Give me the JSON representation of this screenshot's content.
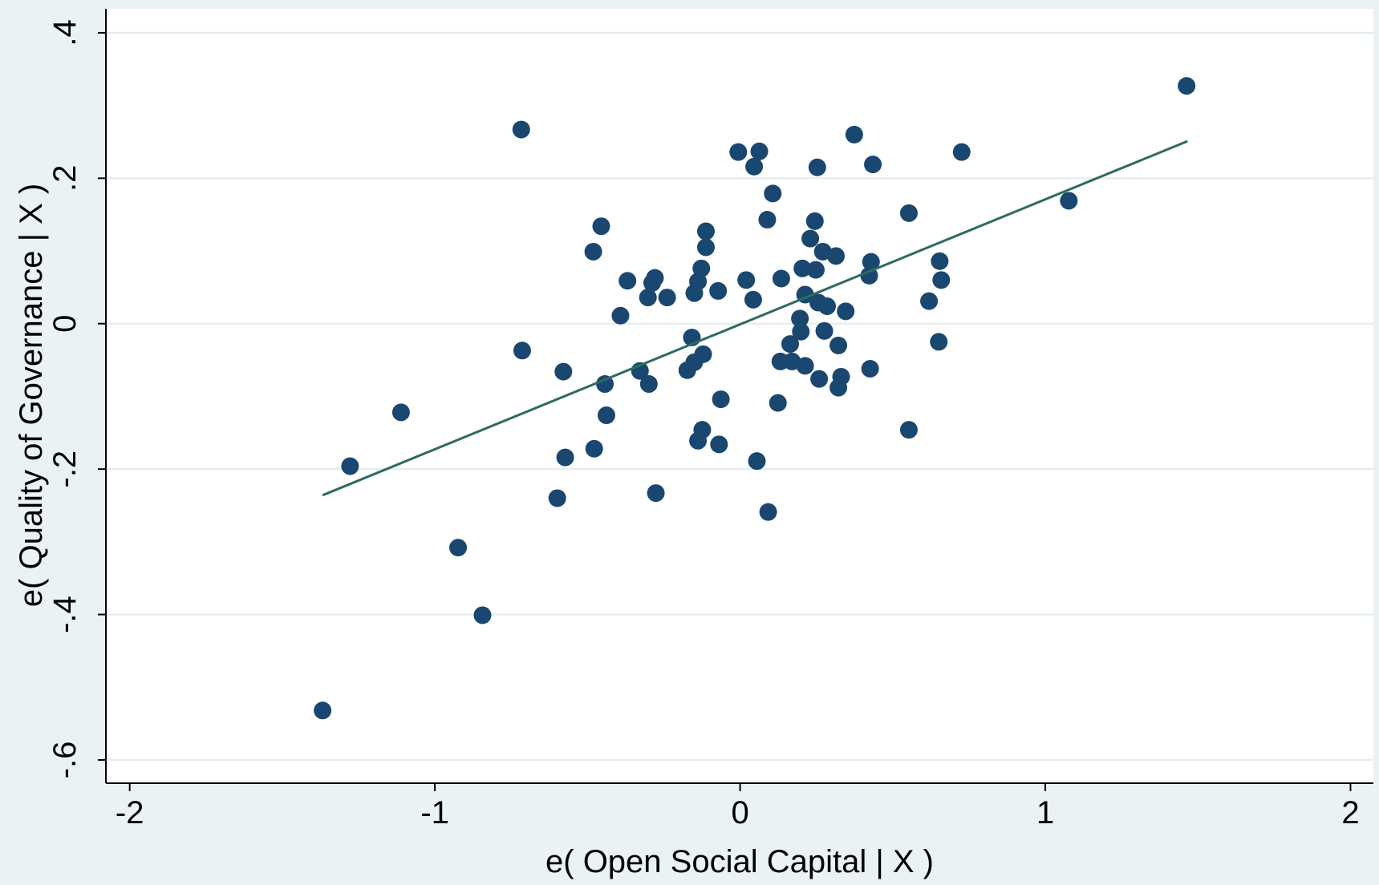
{
  "chart_data": {
    "type": "scatter",
    "x_label": "e( Open Social Capital | X )",
    "y_label": "e( Quality of Governance | X )",
    "xlim": [
      -2.078,
      2.075
    ],
    "ylim": [
      -0.632,
      0.433
    ],
    "xticks": [
      -2,
      -1,
      0,
      1,
      2
    ],
    "yticks": [
      {
        "value": -0.6,
        "label": "-.6"
      },
      {
        "value": -0.4,
        "label": "-.4"
      },
      {
        "value": -0.2,
        "label": "-.2"
      },
      0,
      {
        "value": 0.2,
        "label": ".2"
      },
      {
        "value": 0.4,
        "label": ".4"
      }
    ],
    "grid": true,
    "series": [
      {
        "color": "#1a476f",
        "x": [
          1.463,
          -0.717,
          0.374,
          -0.006,
          0.063,
          0.726,
          0.046,
          0.253,
          0.435,
          0.107,
          1.077,
          0.553,
          -0.455,
          0.089,
          0.245,
          -0.112,
          0.23,
          -0.112,
          -0.481,
          0.271,
          0.314,
          0.429,
          0.654,
          -0.127,
          0.204,
          0.248,
          0.423,
          -0.369,
          -0.279,
          -0.288,
          -0.138,
          0.02,
          0.135,
          0.659,
          -0.072,
          -0.15,
          -0.302,
          -0.239,
          0.043,
          0.213,
          0.256,
          0.285,
          0.619,
          0.346,
          -0.392,
          0.196,
          0.199,
          0.276,
          -0.158,
          0.164,
          0.322,
          0.651,
          -0.714,
          -0.121,
          -0.15,
          0.132,
          0.17,
          0.213,
          -0.579,
          -0.328,
          -0.173,
          0.426,
          0.331,
          0.259,
          -0.443,
          -0.299,
          0.322,
          -0.063,
          -0.438,
          0.124,
          -1.111,
          -0.124,
          0.553,
          -0.138,
          -0.069,
          -0.478,
          -1.278,
          -0.573,
          0.055,
          -0.276,
          -0.599,
          0.092,
          -0.924,
          -0.844,
          -1.368
        ],
        "values": [
          0.327,
          0.267,
          0.26,
          0.236,
          0.237,
          0.236,
          0.216,
          0.215,
          0.219,
          0.179,
          0.169,
          0.152,
          0.134,
          0.143,
          0.141,
          0.127,
          0.117,
          0.105,
          0.099,
          0.099,
          0.093,
          0.085,
          0.086,
          0.076,
          0.076,
          0.074,
          0.066,
          0.059,
          0.063,
          0.056,
          0.058,
          0.06,
          0.062,
          0.06,
          0.045,
          0.042,
          0.036,
          0.036,
          0.033,
          0.04,
          0.029,
          0.024,
          0.031,
          0.017,
          0.011,
          0.007,
          -0.011,
          -0.01,
          -0.019,
          -0.028,
          -0.03,
          -0.025,
          -0.037,
          -0.042,
          -0.053,
          -0.052,
          -0.052,
          -0.058,
          -0.066,
          -0.065,
          -0.064,
          -0.062,
          -0.073,
          -0.076,
          -0.083,
          -0.083,
          -0.088,
          -0.104,
          -0.126,
          -0.109,
          -0.122,
          -0.146,
          -0.146,
          -0.161,
          -0.166,
          -0.172,
          -0.196,
          -0.184,
          -0.189,
          -0.233,
          -0.24,
          -0.259,
          -0.308,
          -0.401,
          -0.532
        ]
      }
    ],
    "fit_line": {
      "color": "#2d6b5f",
      "x": [
        -1.368,
        1.466
      ],
      "values": [
        -0.236,
        0.251
      ]
    }
  }
}
